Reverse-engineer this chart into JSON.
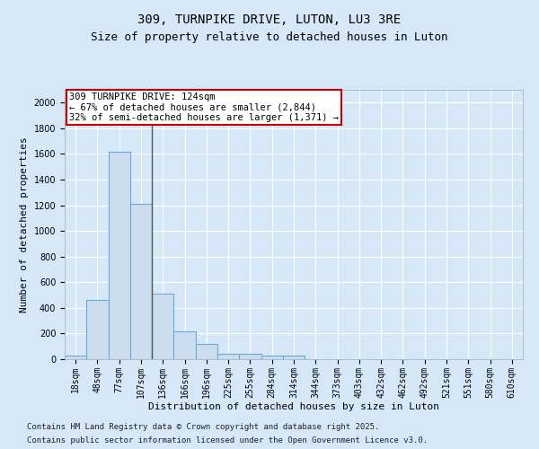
{
  "title": "309, TURNPIKE DRIVE, LUTON, LU3 3RE",
  "subtitle": "Size of property relative to detached houses in Luton",
  "xlabel": "Distribution of detached houses by size in Luton",
  "ylabel": "Number of detached properties",
  "categories": [
    "18sqm",
    "48sqm",
    "77sqm",
    "107sqm",
    "136sqm",
    "166sqm",
    "196sqm",
    "225sqm",
    "255sqm",
    "284sqm",
    "314sqm",
    "344sqm",
    "373sqm",
    "403sqm",
    "432sqm",
    "462sqm",
    "492sqm",
    "521sqm",
    "551sqm",
    "580sqm",
    "610sqm"
  ],
  "values": [
    30,
    460,
    1620,
    1210,
    510,
    220,
    120,
    40,
    40,
    30,
    30,
    0,
    0,
    0,
    0,
    0,
    0,
    0,
    0,
    0,
    0
  ],
  "bar_color": "#ccddf0",
  "bar_edgecolor": "#6aaad4",
  "vline_color": "#555555",
  "annotation_text": "309 TURNPIKE DRIVE: 124sqm\n← 67% of detached houses are smaller (2,844)\n32% of semi-detached houses are larger (1,371) →",
  "annotation_box_facecolor": "#ffffff",
  "annotation_box_edgecolor": "#cc0000",
  "ylim": [
    0,
    2100
  ],
  "yticks": [
    0,
    200,
    400,
    600,
    800,
    1000,
    1200,
    1400,
    1600,
    1800,
    2000
  ],
  "background_color": "#d6e8f7",
  "plot_background": "#d6e8f7",
  "grid_color": "#ffffff",
  "footer1": "Contains HM Land Registry data © Crown copyright and database right 2025.",
  "footer2": "Contains public sector information licensed under the Open Government Licence v3.0.",
  "title_fontsize": 10,
  "subtitle_fontsize": 9,
  "label_fontsize": 8,
  "tick_fontsize": 7,
  "footer_fontsize": 6.5,
  "annotation_fontsize": 7.5
}
